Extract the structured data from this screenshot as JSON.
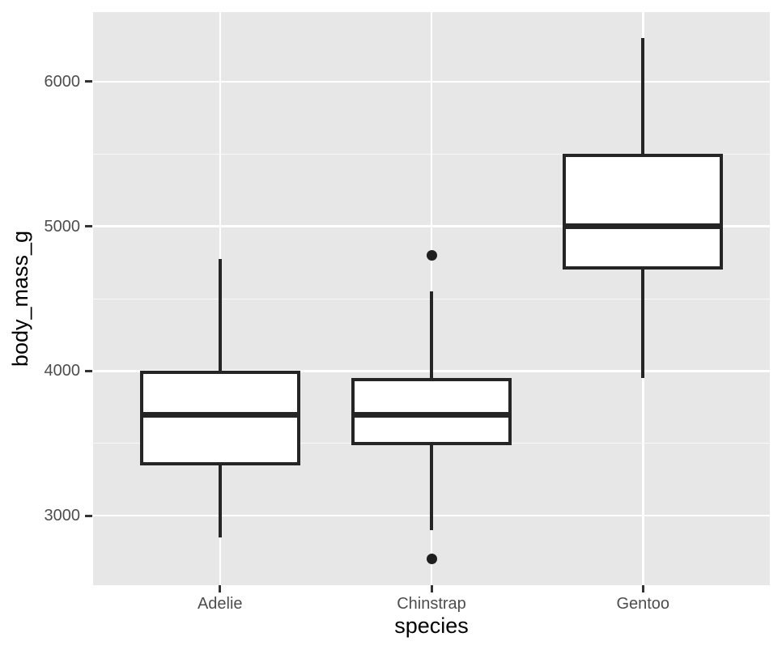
{
  "figure": {
    "background": "#FFFFFF",
    "panel_background": "#E7E7E7",
    "grid_color": "#FFFFFF",
    "box_stroke_color": "#252525",
    "box_fill_color": "#FFFFFF",
    "axis_text_color": "#4D4D4D",
    "axis_title_color": "#000000"
  },
  "chart_data": {
    "type": "boxplot",
    "title": "",
    "xlabel": "species",
    "ylabel": "body_mass_g",
    "categories": [
      "Adelie",
      "Chinstrap",
      "Gentoo"
    ],
    "series": [
      {
        "name": "Adelie",
        "whisker_low": 2850,
        "q1": 3350,
        "median": 3700,
        "q3": 4000,
        "whisker_high": 4775,
        "outliers": []
      },
      {
        "name": "Chinstrap",
        "whisker_low": 2900,
        "q1": 3487.5,
        "median": 3700,
        "q3": 3950,
        "whisker_high": 4550,
        "outliers": [
          2700,
          4800
        ]
      },
      {
        "name": "Gentoo",
        "whisker_low": 3950,
        "q1": 4700,
        "median": 5000,
        "q3": 5500,
        "whisker_high": 6300,
        "outliers": []
      }
    ],
    "ylim": [
      2520,
      6480
    ],
    "yticks": [
      3000,
      4000,
      5000,
      6000
    ],
    "yticks_minor": [
      3500,
      4500,
      5500
    ],
    "grid": true,
    "legend": "none"
  }
}
